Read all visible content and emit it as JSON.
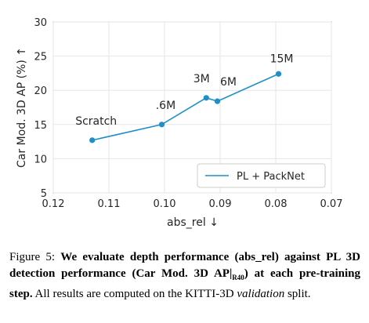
{
  "chart_data": {
    "type": "line",
    "xlabel": "abs_rel ↓",
    "ylabel": "Car Mod. 3D AP (%) ↑",
    "xlim": [
      0.12,
      0.07
    ],
    "ylim": [
      5,
      30
    ],
    "x_reversed": true,
    "xticks": [
      "0.12",
      "0.11",
      "0.10",
      "0.09",
      "0.08",
      "0.07"
    ],
    "xtick_values": [
      0.12,
      0.11,
      0.1,
      0.09,
      0.08,
      0.07
    ],
    "yticks": [
      "5",
      "10",
      "15",
      "20",
      "25",
      "30"
    ],
    "ytick_values": [
      5,
      10,
      15,
      20,
      25,
      30
    ],
    "legend_position": "bottom-right",
    "grid": true,
    "series": [
      {
        "name": "PL + PackNet",
        "color": "#1f8fc8",
        "points": [
          {
            "x": 0.113,
            "y": 12.7,
            "label": "Scratch"
          },
          {
            "x": 0.1005,
            "y": 15.0,
            "label": ".6M"
          },
          {
            "x": 0.0925,
            "y": 18.9,
            "label": "3M"
          },
          {
            "x": 0.0905,
            "y": 18.4,
            "label": "6M"
          },
          {
            "x": 0.0795,
            "y": 22.4,
            "label": "15M"
          }
        ]
      }
    ]
  },
  "caption": {
    "prefix": "Figure 5:",
    "bold_part1": "We evaluate depth performance (abs_rel) against PL 3D detection performance (Car Mod. 3D AP|",
    "bold_sub": "R40",
    "bold_part2": ") at each pre-training step.",
    "normal_part1": "All results are computed on the KITTI-3D",
    "italic_part": "validation",
    "normal_part2": "split."
  }
}
